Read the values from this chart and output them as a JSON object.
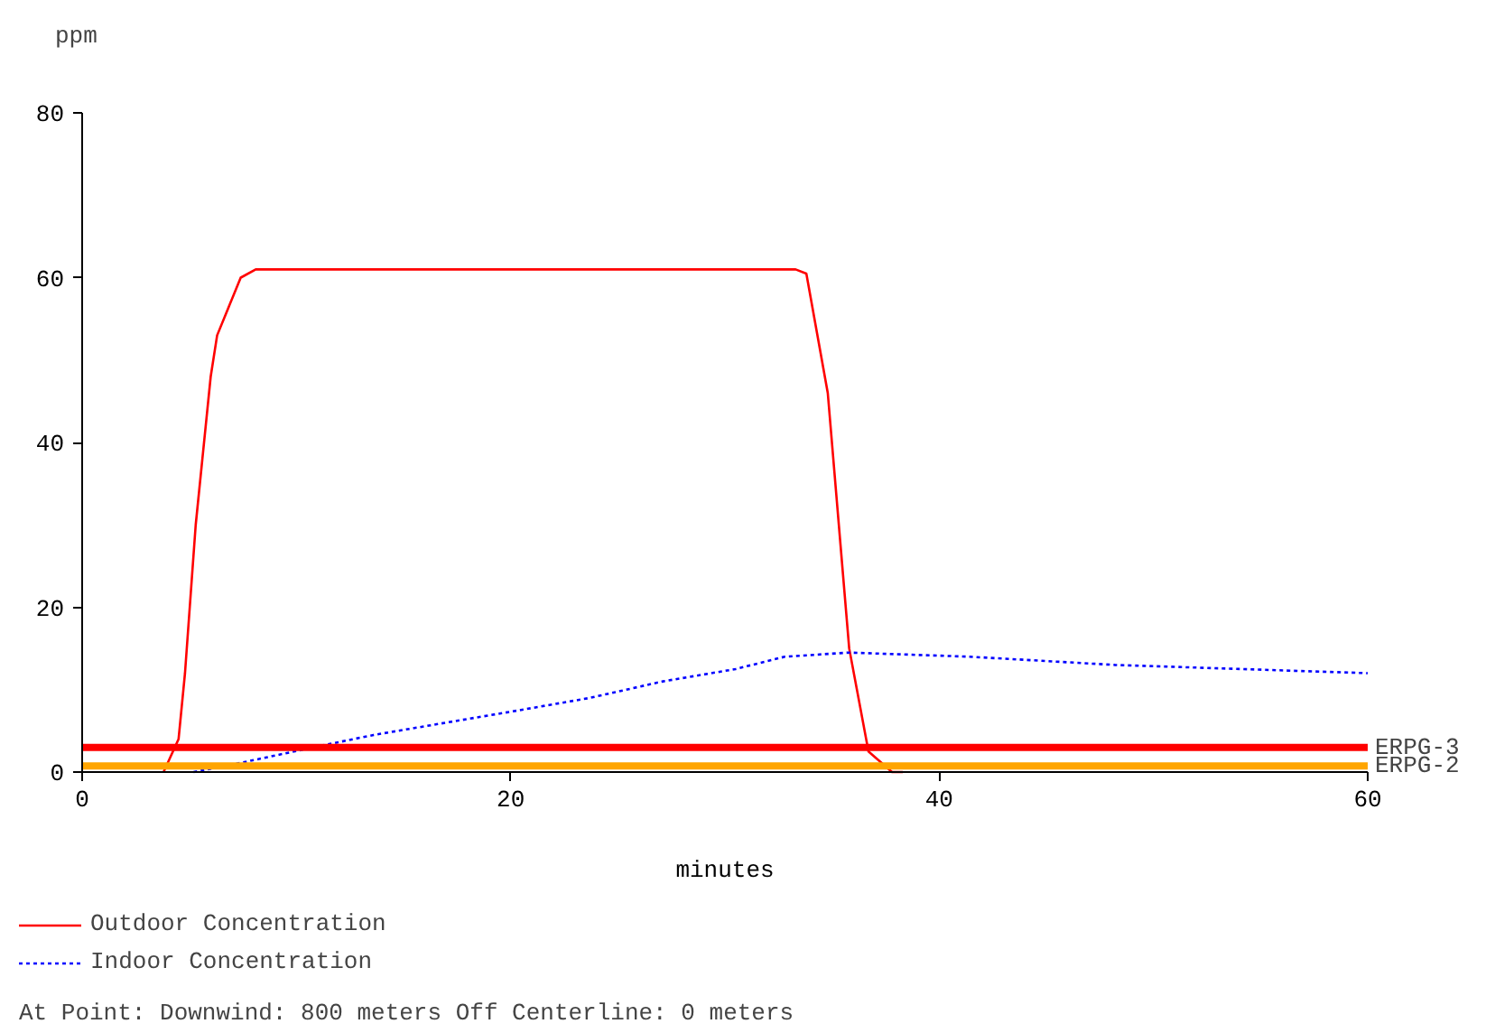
{
  "chart_data": {
    "type": "line",
    "ylabel": "ppm",
    "xlabel": "minutes",
    "xlim": [
      0,
      60
    ],
    "ylim": [
      0,
      80
    ],
    "xticks": [
      0,
      20,
      40,
      60
    ],
    "yticks": [
      0,
      20,
      40,
      60,
      80
    ],
    "grid": false,
    "legend": "bottom",
    "series": [
      {
        "name": "Outdoor Concentration",
        "color": "#ff0000",
        "line_style": "solid",
        "x": [
          3.8,
          4.5,
          4.8,
          5.3,
          6.0,
          6.3,
          7.4,
          8.1,
          33.3,
          33.8,
          34.8,
          35.8,
          36.7,
          37.8,
          38.3
        ],
        "values": [
          0,
          4,
          12,
          30,
          48,
          53,
          60,
          61,
          61,
          60.5,
          46,
          15,
          2.5,
          0,
          0
        ]
      },
      {
        "name": "Indoor Concentration",
        "color": "#0000ff",
        "line_style": "dotted",
        "x": [
          5.2,
          7.2,
          10.8,
          13.6,
          17,
          20.4,
          23.7,
          27.1,
          30.5,
          32.8,
          35.8,
          41.4,
          48.2,
          60
        ],
        "values": [
          0,
          1,
          3,
          4.5,
          6,
          7.5,
          9,
          11,
          12.5,
          14,
          14.5,
          14,
          13,
          12
        ]
      }
    ],
    "ref_lines": [
      {
        "axis": "y",
        "value": 3,
        "label": "ERPG-3",
        "color": "#ff0000"
      },
      {
        "axis": "y",
        "value": 0.75,
        "label": "ERPG-2",
        "color": "#ffa500"
      }
    ],
    "annotations": [
      "At Point:    Downwind: 800 meters    Off Centerline: 0 meters"
    ]
  }
}
